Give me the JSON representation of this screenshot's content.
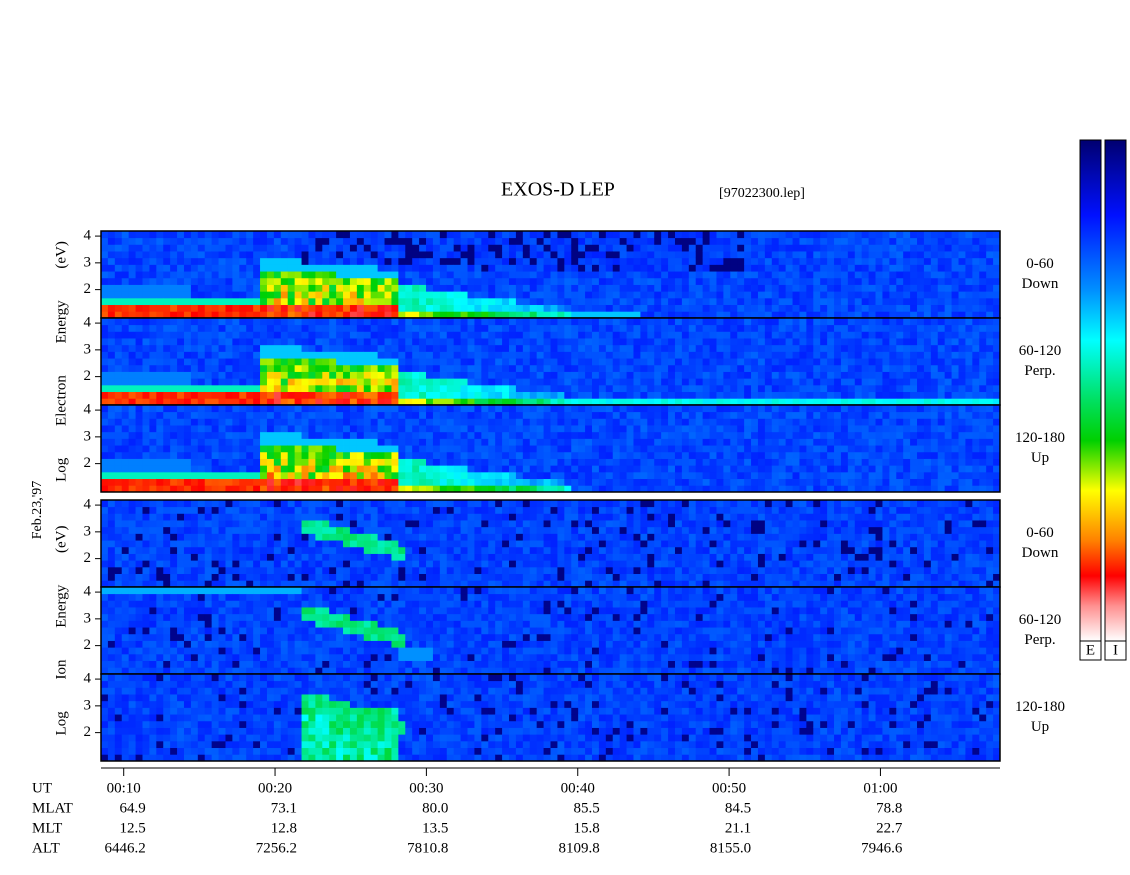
{
  "chart_data": {
    "type": "spectrogram",
    "title": "EXOS-D LEP",
    "file_label": "[97022300.lep]",
    "date_label": "Feb.23,'97",
    "xlim": [
      8.5,
      67.9
    ],
    "xticks": [
      {
        "value": 10,
        "label": "00:10"
      },
      {
        "value": 20,
        "label": "00:20"
      },
      {
        "value": 30,
        "label": "00:30"
      },
      {
        "value": 40,
        "label": "00:40"
      },
      {
        "value": 50,
        "label": "00:50"
      },
      {
        "value": 60,
        "label": "01:00"
      }
    ],
    "ylim": [
      0.94,
      4.19
    ],
    "yticks": [
      2,
      3,
      4
    ],
    "groups": [
      {
        "ylabel": "Log Electron Energy (eV)",
        "panels": [
          {
            "lines": [
              "0-60",
              "Down"
            ]
          },
          {
            "lines": [
              "60-120",
              "Perp."
            ]
          },
          {
            "lines": [
              "120-180",
              "Up"
            ]
          }
        ]
      },
      {
        "ylabel": "Log Ion Energy (eV)",
        "panels": [
          {
            "lines": [
              "0-60",
              "Down"
            ]
          },
          {
            "lines": [
              "60-120",
              "Perp."
            ]
          },
          {
            "lines": [
              "120-180",
              "Up"
            ]
          }
        ]
      }
    ],
    "colorbar_labels": [
      "E",
      "I"
    ],
    "orbit_labels": [
      "UT",
      "MLAT",
      "MLT",
      "ALT"
    ],
    "orbit_rows": [
      [
        "64.9",
        "73.1",
        "80.0",
        "85.5",
        "84.5",
        "78.8"
      ],
      [
        "12.5",
        "12.8",
        "13.5",
        "15.8",
        "21.1",
        "22.7"
      ],
      [
        "6446.2",
        "7256.2",
        "7810.8",
        "8109.8",
        "8155.0",
        "7946.6"
      ]
    ]
  }
}
